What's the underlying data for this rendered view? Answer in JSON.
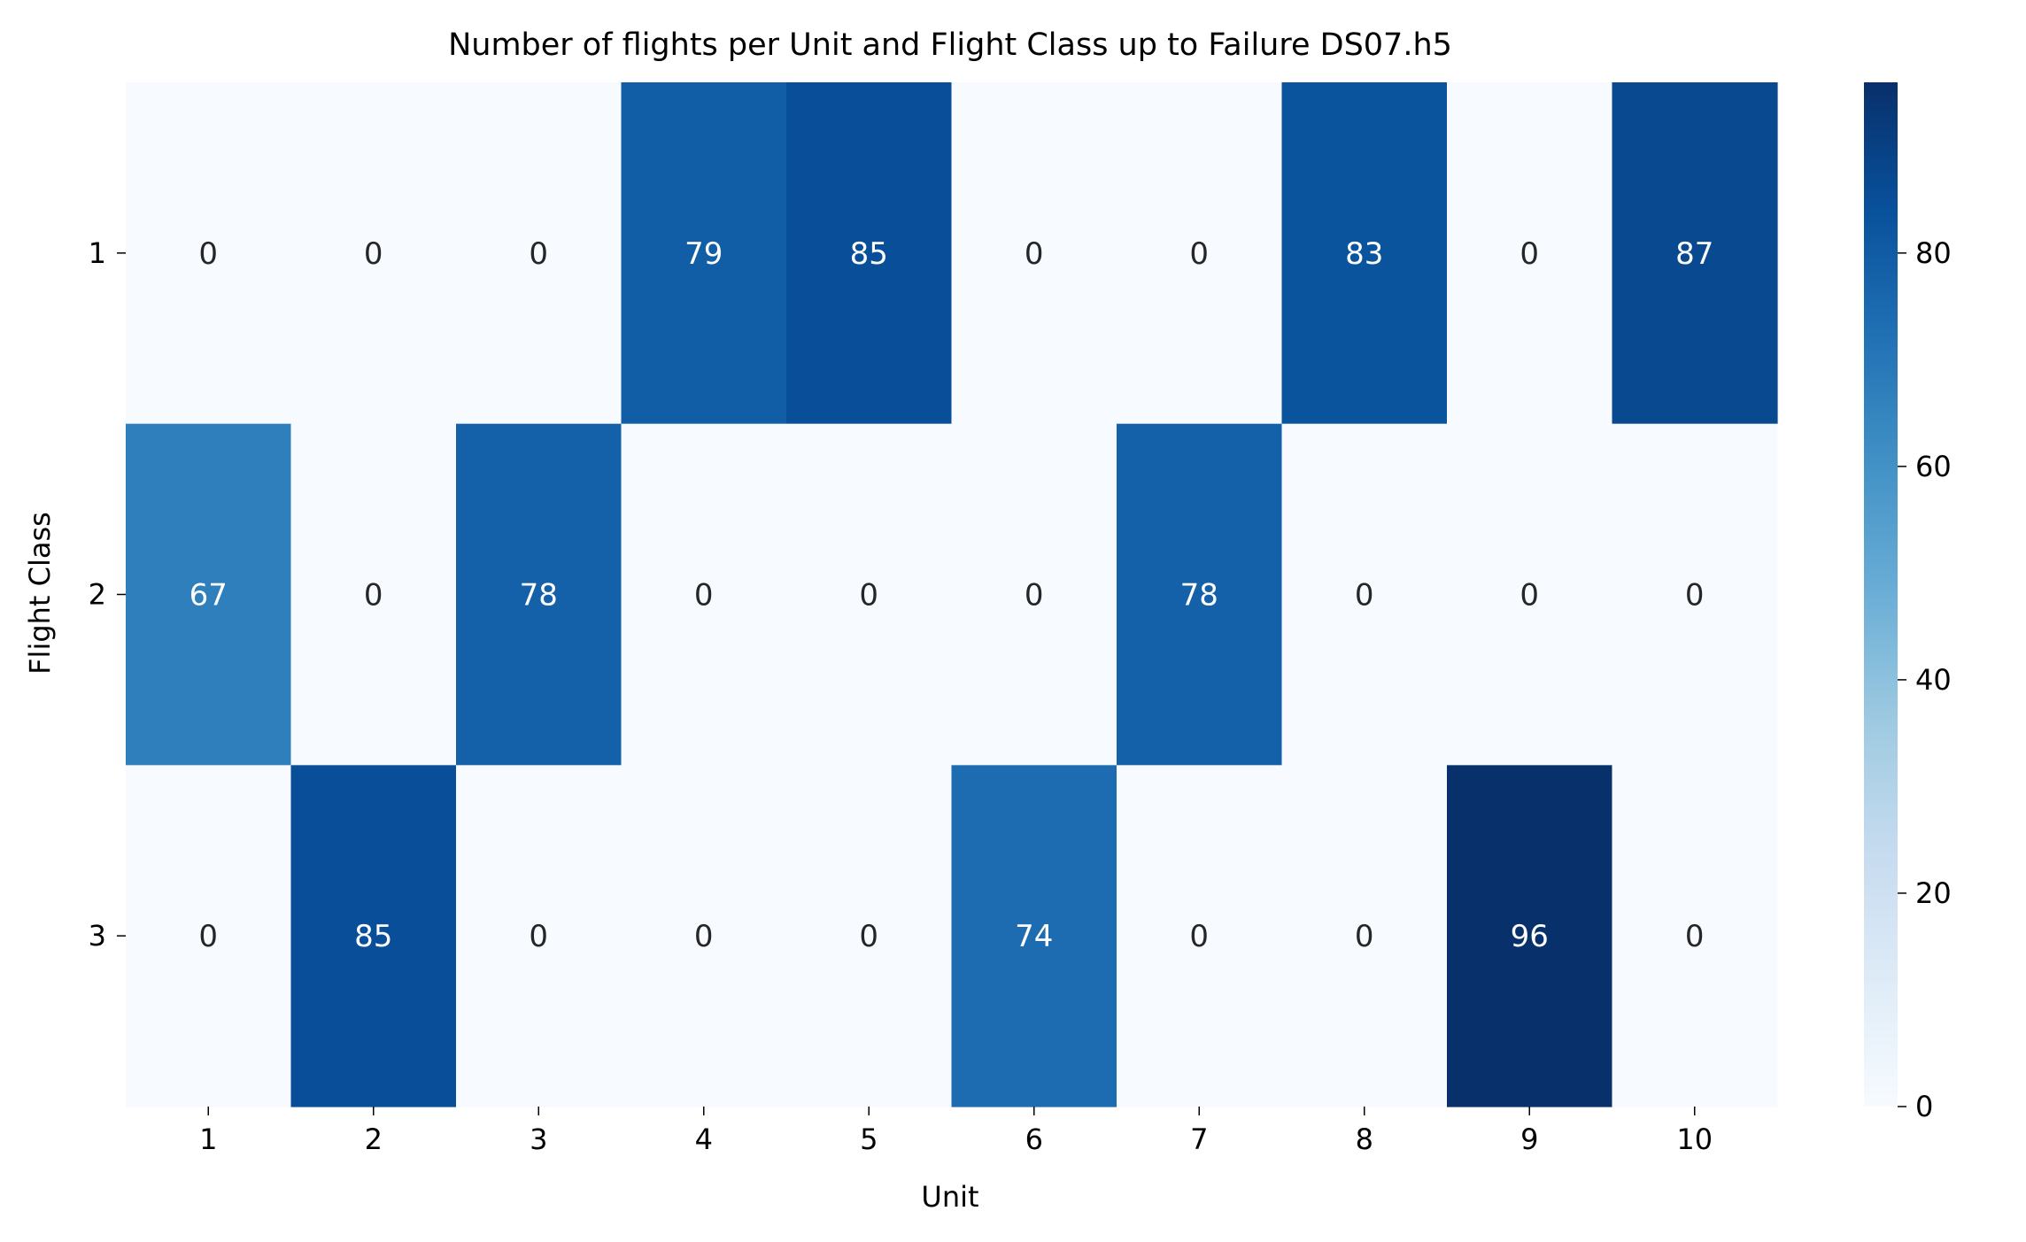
{
  "chart_data": {
    "type": "heatmap",
    "title": "Number of flights per Unit and Flight Class up to Failure DS07.h5",
    "xlabel": "Unit",
    "ylabel": "Flight Class",
    "x_categories": [
      "1",
      "2",
      "3",
      "4",
      "5",
      "6",
      "7",
      "8",
      "9",
      "10"
    ],
    "y_categories": [
      "1",
      "2",
      "3"
    ],
    "values": [
      [
        0,
        0,
        0,
        79,
        85,
        0,
        0,
        83,
        0,
        87
      ],
      [
        67,
        0,
        78,
        0,
        0,
        0,
        78,
        0,
        0,
        0
      ],
      [
        0,
        85,
        0,
        0,
        0,
        74,
        0,
        0,
        96,
        0
      ]
    ],
    "colorbar": {
      "min": 0,
      "max": 96,
      "ticks": [
        0,
        20,
        40,
        60,
        80
      ],
      "tick_labels": [
        "0",
        "20",
        "40",
        "60",
        "80"
      ],
      "colormap": "Blues"
    },
    "annotations": true
  }
}
